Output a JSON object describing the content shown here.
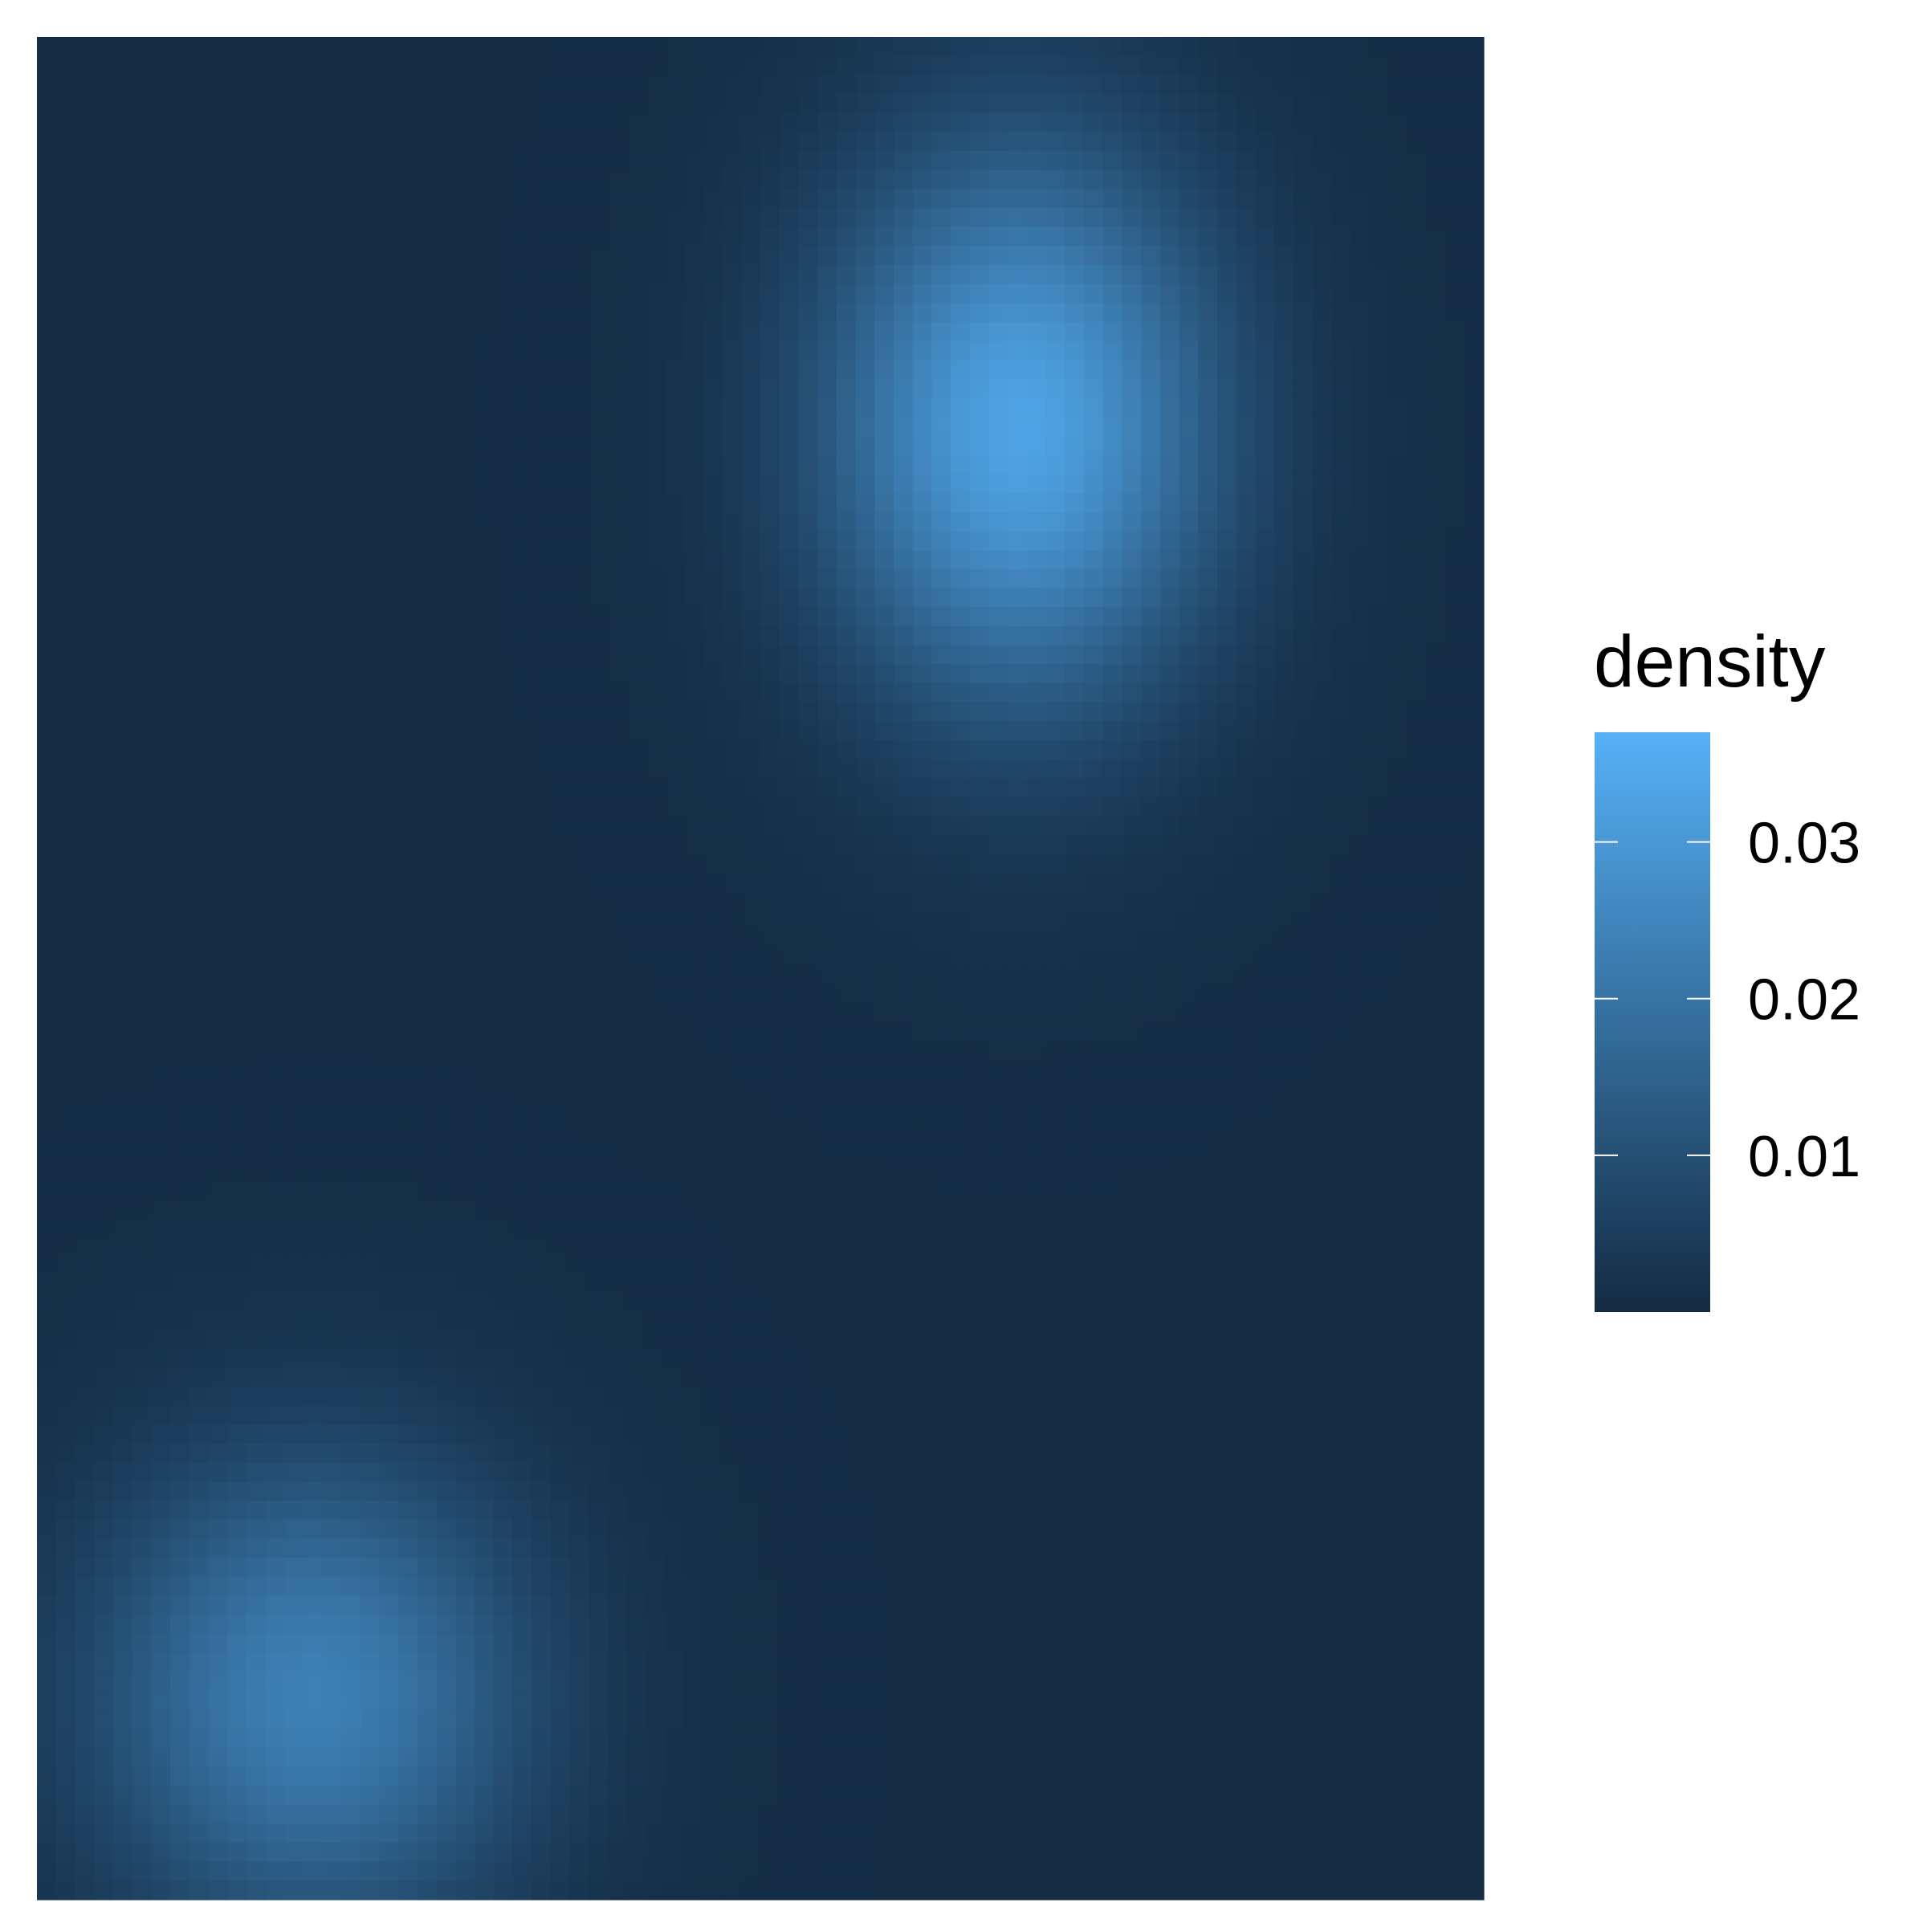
{
  "chart_data": {
    "type": "heatmap",
    "title": "",
    "xlabel": "",
    "ylabel": "",
    "grid": false,
    "axes_shown": false,
    "legend": {
      "title": "density",
      "placement": "right",
      "breaks": [
        0.01,
        0.02,
        0.03
      ],
      "tick_labels": [
        "0.01",
        "0.02",
        "0.03"
      ],
      "range": [
        0.0,
        0.037
      ]
    },
    "color_scale": {
      "low": "#132B43",
      "high": "#56B1F7"
    },
    "grid_size": [
      76,
      98
    ],
    "components": [
      {
        "peak_density": 0.0325,
        "center_x": 0.68,
        "center_y": 0.79,
        "spread_x": 0.095,
        "spread_y": 0.105
      },
      {
        "peak_density": 0.023,
        "center_x": 0.19,
        "center_y": 0.11,
        "spread_x": 0.105,
        "spread_y": 0.09
      }
    ],
    "baseline_density": 0.0005
  }
}
